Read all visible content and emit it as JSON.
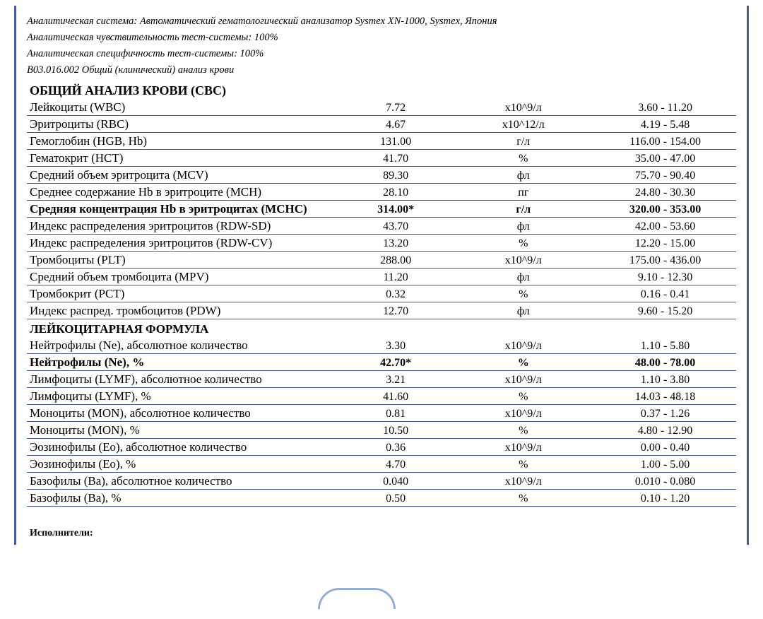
{
  "meta": {
    "system": "Аналитическая система: Автоматический гематологический анализатор Sysmex XN-1000, Sysmex, Япония",
    "sensitivity": "Аналитическая чувствительность тест-системы: 100%",
    "specificity": "Аналитическая специфичность тест-системы: 100%",
    "code": "В03.016.002 Общий (клинический) анализ крови"
  },
  "sections": [
    {
      "title": "ОБЩИЙ АНАЛИЗ КРОВИ (CBC)",
      "rows": [
        {
          "name": "Лейкоциты (WBC)",
          "value": "7.72",
          "unit": "х10^9/л",
          "range": "3.60 - 11.20",
          "bold": false
        },
        {
          "name": "Эритроциты (RBC)",
          "value": "4.67",
          "unit": "х10^12/л",
          "range": "4.19 - 5.48",
          "bold": false
        },
        {
          "name": "Гемоглобин (HGB, Hb)",
          "value": "131.00",
          "unit": "г/л",
          "range": "116.00 - 154.00",
          "bold": false
        },
        {
          "name": "Гематокрит (HCT)",
          "value": "41.70",
          "unit": "%",
          "range": "35.00 - 47.00",
          "bold": false
        },
        {
          "name": "Средний объем эритроцита (MCV)",
          "value": "89.30",
          "unit": "фл",
          "range": "75.70 - 90.40",
          "bold": false
        },
        {
          "name": "Среднее содержание Hb в эритроците (MCH)",
          "value": "28.10",
          "unit": "пг",
          "range": "24.80 - 30.30",
          "bold": false
        },
        {
          "name": "Средняя концентрация Hb в эритроцитах (MCHC)",
          "value": "314.00*",
          "unit": "г/л",
          "range": "320.00 - 353.00",
          "bold": true
        },
        {
          "name": "Индекс распределения эритроцитов (RDW-SD)",
          "value": "43.70",
          "unit": "фл",
          "range": "42.00 - 53.60",
          "bold": false
        },
        {
          "name": "Индекс распределения эритроцитов (RDW-CV)",
          "value": "13.20",
          "unit": "%",
          "range": "12.20 - 15.00",
          "bold": false
        },
        {
          "name": "Тромбоциты (PLT)",
          "value": "288.00",
          "unit": "х10^9/л",
          "range": "175.00 - 436.00",
          "bold": false
        },
        {
          "name": "Средний объем тромбоцита (MPV)",
          "value": "11.20",
          "unit": "фл",
          "range": "9.10 - 12.30",
          "bold": false
        },
        {
          "name": "Тромбокрит (PCT)",
          "value": "0.32",
          "unit": "%",
          "range": "0.16 - 0.41",
          "bold": false
        },
        {
          "name": "Индекс распред. тромбоцитов (PDW)",
          "value": "12.70",
          "unit": "фл",
          "range": "9.60 - 15.20",
          "bold": false
        }
      ]
    },
    {
      "title": "ЛЕЙКОЦИТАРНАЯ ФОРМУЛА",
      "rows": [
        {
          "name": "Нейтрофилы (Ne), абсолютное количество",
          "value": "3.30",
          "unit": "х10^9/л",
          "range": "1.10 - 5.80",
          "bold": false
        },
        {
          "name": "Нейтрофилы (Ne), %",
          "value": "42.70*",
          "unit": "%",
          "range": "48.00 - 78.00",
          "bold": true
        },
        {
          "name": "Лимфоциты (LYMF), абсолютное количество",
          "value": "3.21",
          "unit": "х10^9/л",
          "range": "1.10 - 3.80",
          "bold": false
        },
        {
          "name": "Лимфоциты (LYMF), %",
          "value": "41.60",
          "unit": "%",
          "range": "14.03 - 48.18",
          "bold": false
        },
        {
          "name": "Моноциты (MON), абсолютное количество",
          "value": "0.81",
          "unit": "х10^9/л",
          "range": "0.37 - 1.26",
          "bold": false
        },
        {
          "name": "Моноциты (MON), %",
          "value": "10.50",
          "unit": "%",
          "range": "4.80 - 12.90",
          "bold": false
        },
        {
          "name": "Эозинофилы (Eo), абсолютное количество",
          "value": "0.36",
          "unit": "х10^9/л",
          "range": "0.00 - 0.40",
          "bold": false
        },
        {
          "name": "Эозинофилы (Eo), %",
          "value": "4.70",
          "unit": "%",
          "range": "1.00 - 5.00",
          "bold": false
        },
        {
          "name": "Базофилы (Ba), абсолютное количество",
          "value": "0.040",
          "unit": "х10^9/л",
          "range": "0.010 - 0.080",
          "bold": false
        },
        {
          "name": "Базофилы (Ba), %",
          "value": "0.50",
          "unit": "%",
          "range": "0.10 - 1.20",
          "bold": false
        }
      ]
    }
  ],
  "footer": {
    "performers": "Исполнители:"
  },
  "style": {
    "border_color": "#4a5ba8",
    "text_color": "#000000",
    "bg_color": "#ffffff",
    "font_family": "Times New Roman",
    "name_fontsize": 17,
    "value_fontsize": 16,
    "meta_fontsize": 14.5,
    "col_widths_pct": [
      44,
      16,
      20,
      20
    ],
    "stamp_color": "#3a6fb0"
  }
}
